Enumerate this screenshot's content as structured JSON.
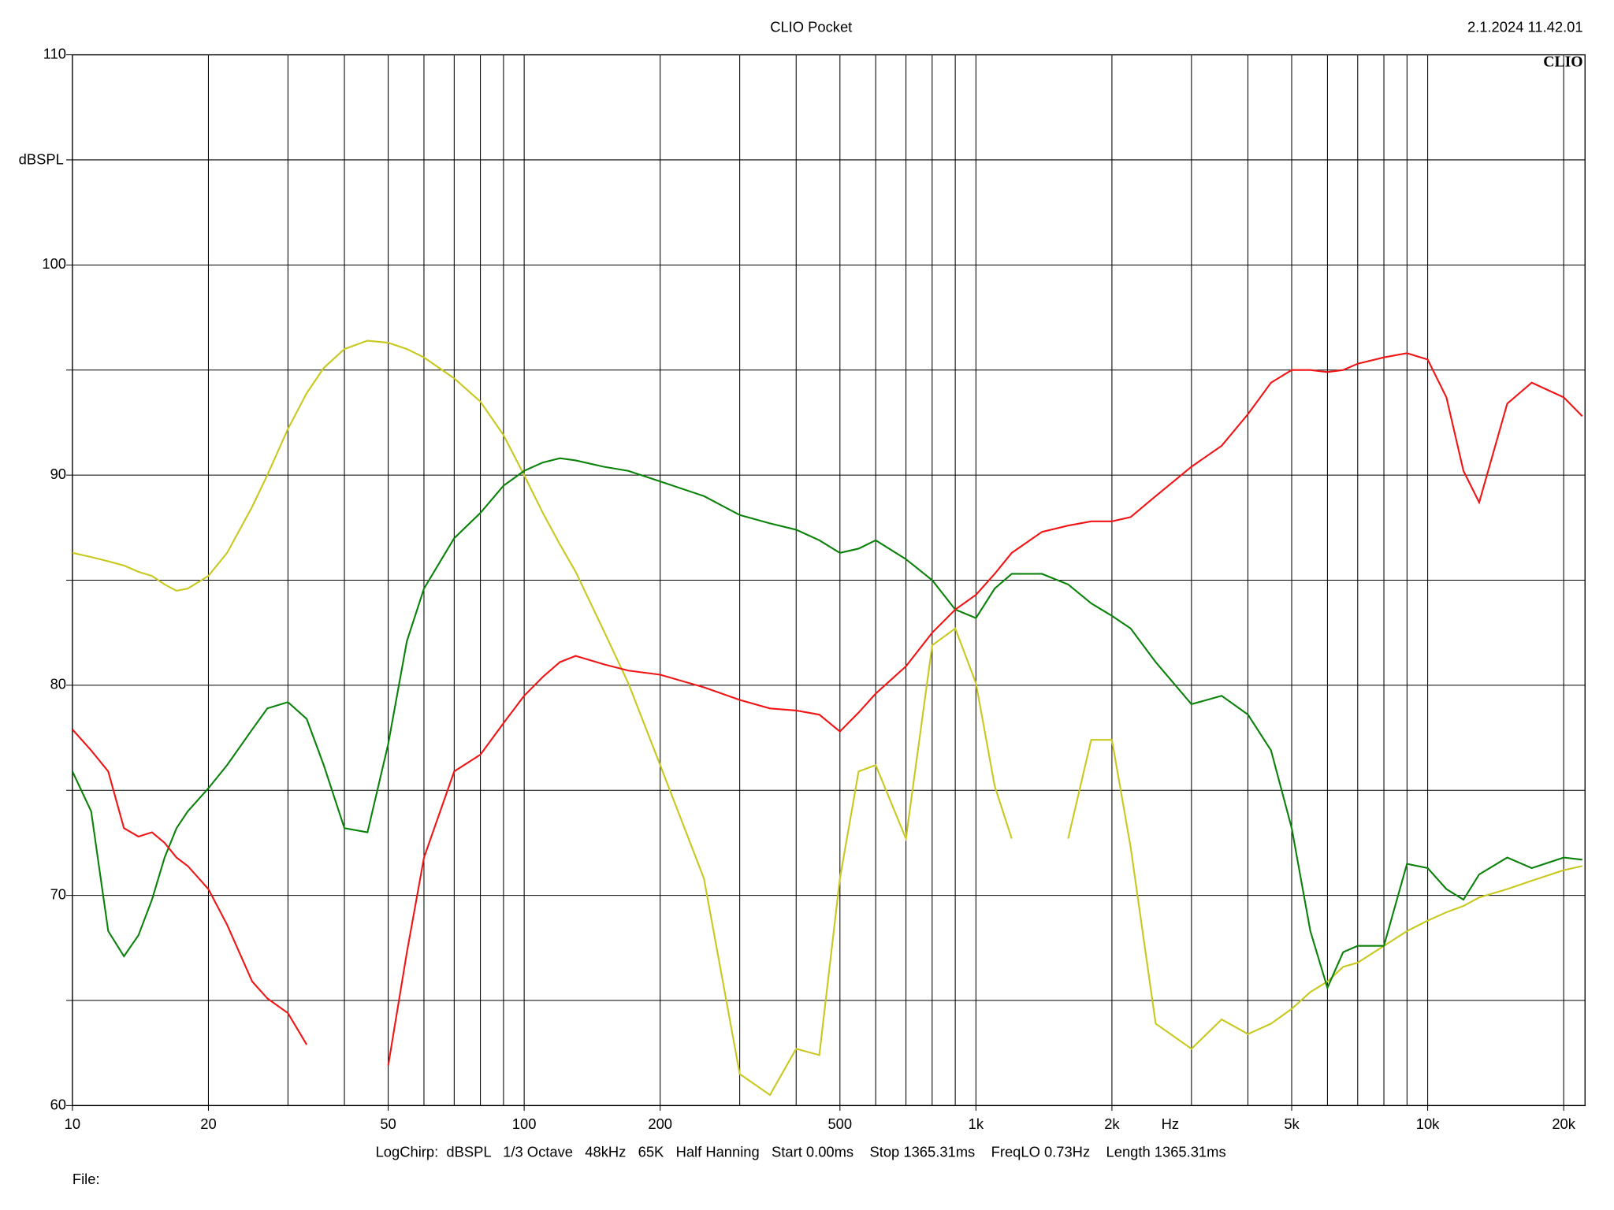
{
  "chart_data": {
    "type": "line",
    "title": "CLIO Pocket",
    "timestamp": "2.1.2024 11.42.01",
    "logo": "CLIO",
    "ylabel": "dBSPL",
    "xlabel": "Hz",
    "footer": "LogChirp:  dBSPL   1/3 Octave   48kHz   65K   Half Hanning   Start 0.00ms    Stop 1365.31ms    FreqLO 0.73Hz    Length 1365.31ms",
    "file_label": "File:",
    "xscale": "log",
    "xlim": [
      10,
      22300
    ],
    "ylim": [
      60,
      110
    ],
    "xticks": [
      10,
      20,
      50,
      100,
      200,
      500,
      {
        "value": 1000,
        "label": "1k"
      },
      {
        "value": 2000,
        "label": "2k"
      },
      {
        "value": 5000,
        "label": "5k"
      },
      {
        "value": 10000,
        "label": "10k"
      },
      {
        "value": 20000,
        "label": "20k"
      }
    ],
    "xgrid": [
      10,
      20,
      30,
      40,
      50,
      60,
      70,
      80,
      90,
      100,
      200,
      300,
      400,
      500,
      600,
      700,
      800,
      900,
      1000,
      2000,
      3000,
      4000,
      5000,
      6000,
      7000,
      8000,
      9000,
      10000,
      20000
    ],
    "yticks": [
      60,
      70,
      80,
      90,
      100,
      110
    ],
    "ygrid": [
      60,
      65,
      70,
      75,
      80,
      85,
      90,
      95,
      100,
      105,
      110
    ],
    "grid": true,
    "x": [
      10,
      11,
      12,
      13,
      14,
      15,
      16,
      17,
      18,
      20,
      22,
      25,
      27,
      30,
      33,
      36,
      40,
      45,
      50,
      55,
      60,
      70,
      80,
      90,
      100,
      110,
      120,
      130,
      150,
      170,
      200,
      250,
      300,
      350,
      400,
      450,
      500,
      550,
      600,
      700,
      800,
      900,
      1000,
      1100,
      1200,
      1400,
      1600,
      1800,
      2000,
      2200,
      2500,
      3000,
      3500,
      4000,
      4500,
      5000,
      5500,
      6000,
      6500,
      7000,
      8000,
      9000,
      10000,
      11000,
      12000,
      13000,
      15000,
      17000,
      20000,
      22000
    ],
    "series": [
      {
        "color": "#c8c81e",
        "values": [
          86.3,
          86.1,
          85.9,
          85.7,
          85.4,
          85.2,
          84.8,
          84.5,
          84.6,
          85.2,
          86.3,
          88.5,
          90.0,
          92.2,
          93.9,
          95.1,
          96.0,
          96.4,
          96.3,
          96.0,
          95.6,
          94.6,
          93.5,
          91.9,
          90.0,
          88.2,
          86.7,
          85.4,
          82.6,
          80.1,
          76.2,
          70.8,
          61.5,
          60.5,
          62.7,
          62.4,
          70.8,
          75.9,
          76.2,
          72.7,
          81.9,
          82.7,
          80.1,
          75.2,
          72.7,
          null,
          72.7,
          77.4,
          77.4,
          72.3,
          63.9,
          62.7,
          64.1,
          63.4,
          63.9,
          64.6,
          65.4,
          65.9,
          66.6,
          66.8,
          67.6,
          68.3,
          68.8,
          69.2,
          69.5,
          69.9,
          70.3,
          70.7,
          71.2,
          71.4
        ]
      },
      {
        "color": "#0a820a",
        "values": [
          75.9,
          74.0,
          68.3,
          67.1,
          68.1,
          69.8,
          71.8,
          73.2,
          74.0,
          75.1,
          76.2,
          77.9,
          78.9,
          79.2,
          78.4,
          76.2,
          73.2,
          73.0,
          77.2,
          82.1,
          84.6,
          87.0,
          88.2,
          89.5,
          90.2,
          90.6,
          90.8,
          90.7,
          90.4,
          90.2,
          89.7,
          89.0,
          88.1,
          87.7,
          87.4,
          86.9,
          86.3,
          86.5,
          86.9,
          86.0,
          85.0,
          83.6,
          83.2,
          84.6,
          85.3,
          85.3,
          84.8,
          83.9,
          83.3,
          82.7,
          81.1,
          79.1,
          79.5,
          78.6,
          76.9,
          73.2,
          68.3,
          65.6,
          67.3,
          67.6,
          67.6,
          71.5,
          71.3,
          70.3,
          69.8,
          71.0,
          71.8,
          71.3,
          71.8,
          71.7
        ]
      },
      {
        "color": "#f01414",
        "values": [
          77.9,
          76.9,
          75.9,
          73.2,
          72.8,
          73.0,
          72.5,
          71.8,
          71.4,
          70.3,
          68.6,
          65.9,
          65.1,
          64.4,
          62.9,
          null,
          null,
          null,
          61.9,
          67.3,
          71.8,
          75.9,
          76.7,
          78.2,
          79.5,
          80.4,
          81.1,
          81.4,
          81.0,
          80.7,
          80.5,
          79.9,
          79.3,
          78.9,
          78.8,
          78.6,
          77.8,
          78.7,
          79.6,
          80.9,
          82.5,
          83.6,
          84.3,
          85.3,
          86.3,
          87.3,
          87.6,
          87.8,
          87.8,
          88.0,
          89.0,
          90.4,
          91.4,
          92.9,
          94.4,
          95.0,
          95.0,
          94.9,
          95.0,
          95.3,
          95.6,
          95.8,
          95.5,
          93.7,
          90.2,
          88.7,
          93.4,
          94.4,
          93.7,
          92.8
        ]
      }
    ]
  }
}
